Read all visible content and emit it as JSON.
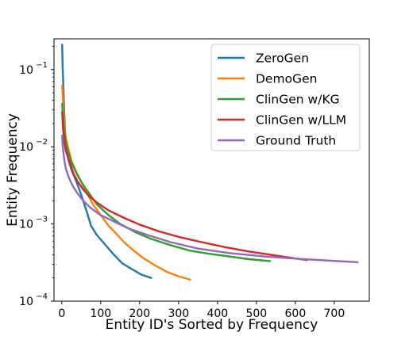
{
  "chart_data": {
    "type": "line",
    "xlabel": "Entity ID's Sorted by Frequency",
    "ylabel": "Entity Frequency",
    "xlim": [
      -20,
      790
    ],
    "ylim": [
      0.0001,
      0.25
    ],
    "yscale": "log",
    "xticks": [
      0,
      100,
      200,
      300,
      400,
      500,
      600,
      700
    ],
    "yticks": [
      {
        "value": 0.0001,
        "base": "10",
        "exp": "−4"
      },
      {
        "value": 0.001,
        "base": "10",
        "exp": "−3"
      },
      {
        "value": 0.01,
        "base": "10",
        "exp": "−2"
      },
      {
        "value": 0.1,
        "base": "10",
        "exp": "−1"
      }
    ],
    "grid": false,
    "legend_position": "top-right",
    "series": [
      {
        "name": "ZeroGen",
        "color": "#1f77b4",
        "x": [
          1,
          2,
          4,
          6,
          8,
          10,
          14,
          18,
          25,
          35,
          45,
          55,
          65,
          75,
          90,
          110,
          130,
          155,
          180,
          205,
          230
        ],
        "y": [
          0.21,
          0.12,
          0.06,
          0.03,
          0.018,
          0.012,
          0.008,
          0.0065,
          0.005,
          0.0038,
          0.0028,
          0.002,
          0.0014,
          0.00095,
          0.00072,
          0.00055,
          0.00042,
          0.00031,
          0.00026,
          0.00022,
          0.0002
        ]
      },
      {
        "name": "DemoGen",
        "color": "#ff7f0e",
        "x": [
          1,
          3,
          5,
          8,
          12,
          18,
          25,
          35,
          50,
          65,
          80,
          100,
          120,
          140,
          160,
          185,
          210,
          240,
          270,
          300,
          330
        ],
        "y": [
          0.062,
          0.04,
          0.025,
          0.016,
          0.012,
          0.009,
          0.0065,
          0.005,
          0.0035,
          0.0025,
          0.0018,
          0.0013,
          0.00095,
          0.00075,
          0.00058,
          0.00045,
          0.00036,
          0.00029,
          0.00024,
          0.00021,
          0.00019
        ]
      },
      {
        "name": "ClinGen w/KG",
        "color": "#2ca02c",
        "x": [
          1,
          3,
          6,
          10,
          15,
          22,
          30,
          40,
          55,
          70,
          90,
          120,
          150,
          190,
          230,
          280,
          330,
          380,
          430,
          480,
          535
        ],
        "y": [
          0.036,
          0.025,
          0.017,
          0.012,
          0.009,
          0.007,
          0.0055,
          0.0043,
          0.0032,
          0.0025,
          0.0018,
          0.0013,
          0.001,
          0.00078,
          0.00064,
          0.00053,
          0.00045,
          0.00041,
          0.00038,
          0.00035,
          0.00033
        ]
      },
      {
        "name": "ClinGen w/LLM",
        "color": "#d62728",
        "x": [
          1,
          3,
          6,
          10,
          15,
          22,
          30,
          40,
          55,
          70,
          90,
          120,
          160,
          200,
          250,
          300,
          360,
          420,
          480,
          550,
          630
        ],
        "y": [
          0.028,
          0.018,
          0.012,
          0.009,
          0.0075,
          0.006,
          0.0045,
          0.0036,
          0.0028,
          0.0023,
          0.0019,
          0.0015,
          0.0012,
          0.00098,
          0.0008,
          0.00068,
          0.00058,
          0.0005,
          0.00044,
          0.00039,
          0.00034
        ]
      },
      {
        "name": "Ground Truth",
        "color": "#9467bd",
        "x": [
          1,
          2,
          4,
          7,
          10,
          15,
          22,
          30,
          40,
          55,
          75,
          100,
          130,
          170,
          220,
          280,
          350,
          430,
          520,
          620,
          760
        ],
        "y": [
          0.014,
          0.011,
          0.0085,
          0.0065,
          0.0053,
          0.0044,
          0.0036,
          0.003,
          0.0025,
          0.002,
          0.0016,
          0.0013,
          0.0011,
          0.00088,
          0.00072,
          0.00058,
          0.00048,
          0.00042,
          0.00038,
          0.00035,
          0.00032
        ]
      }
    ]
  }
}
